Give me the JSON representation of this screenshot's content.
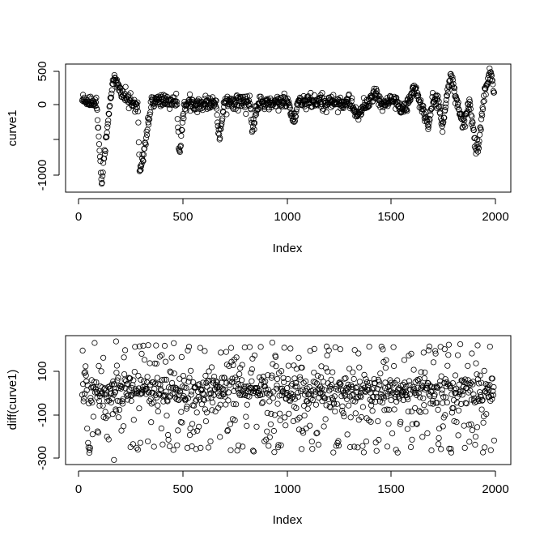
{
  "chart_data": [
    {
      "type": "scatter",
      "title": "",
      "xlabel": "Index",
      "ylabel": "curve1",
      "xlim": [
        -80,
        2080
      ],
      "ylim": [
        -1230,
        570
      ],
      "xticks": [
        0,
        500,
        1000,
        1500,
        2000
      ],
      "xtick_labels": [
        "0",
        "500",
        "1000",
        "1500",
        "2000"
      ],
      "yticks": [
        500,
        0,
        -500,
        -1000
      ],
      "ytick_labels": [
        "500",
        "0",
        "",
        "-1000"
      ],
      "grid": false,
      "n_points": 2000,
      "baseline_points": [
        [
          0,
          60
        ],
        [
          70,
          40
        ],
        [
          95,
          -1100
        ],
        [
          110,
          -700
        ],
        [
          135,
          50
        ],
        [
          155,
          350
        ],
        [
          220,
          50
        ],
        [
          270,
          -20
        ],
        [
          280,
          -950
        ],
        [
          310,
          -500
        ],
        [
          335,
          50
        ],
        [
          460,
          40
        ],
        [
          470,
          -750
        ],
        [
          495,
          0
        ],
        [
          650,
          40
        ],
        [
          665,
          -500
        ],
        [
          690,
          50
        ],
        [
          815,
          40
        ],
        [
          825,
          -380
        ],
        [
          850,
          0
        ],
        [
          1000,
          40
        ],
        [
          1025,
          -250
        ],
        [
          1050,
          40
        ],
        [
          1300,
          30
        ],
        [
          1340,
          -150
        ],
        [
          1420,
          150
        ],
        [
          1460,
          -50
        ],
        [
          1500,
          80
        ],
        [
          1560,
          -120
        ],
        [
          1610,
          250
        ],
        [
          1640,
          20
        ],
        [
          1680,
          -280
        ],
        [
          1700,
          80
        ],
        [
          1730,
          50
        ],
        [
          1750,
          -320
        ],
        [
          1785,
          420
        ],
        [
          1830,
          -100
        ],
        [
          1850,
          -300
        ],
        [
          1880,
          50
        ],
        [
          1910,
          -600
        ],
        [
          1925,
          -550
        ],
        [
          1950,
          100
        ],
        [
          1980,
          500
        ],
        [
          2000,
          160
        ]
      ]
    },
    {
      "type": "scatter",
      "title": "",
      "xlabel": "Index",
      "ylabel": "diff(curve1)",
      "xlim": [
        -80,
        2080
      ],
      "ylim": [
        -320,
        240
      ],
      "xticks": [
        0,
        500,
        1000,
        1500,
        2000
      ],
      "xtick_labels": [
        "0",
        "500",
        "1000",
        "1500",
        "2000"
      ],
      "yticks": [
        100,
        -100,
        -300
      ],
      "ytick_labels": [
        "100",
        "-100",
        "-300"
      ],
      "grid": false,
      "n_points": 1999,
      "value_range": [
        -270,
        210
      ],
      "outliers": [
        [
          155,
          -300
        ],
        [
          165,
          215
        ]
      ]
    }
  ]
}
